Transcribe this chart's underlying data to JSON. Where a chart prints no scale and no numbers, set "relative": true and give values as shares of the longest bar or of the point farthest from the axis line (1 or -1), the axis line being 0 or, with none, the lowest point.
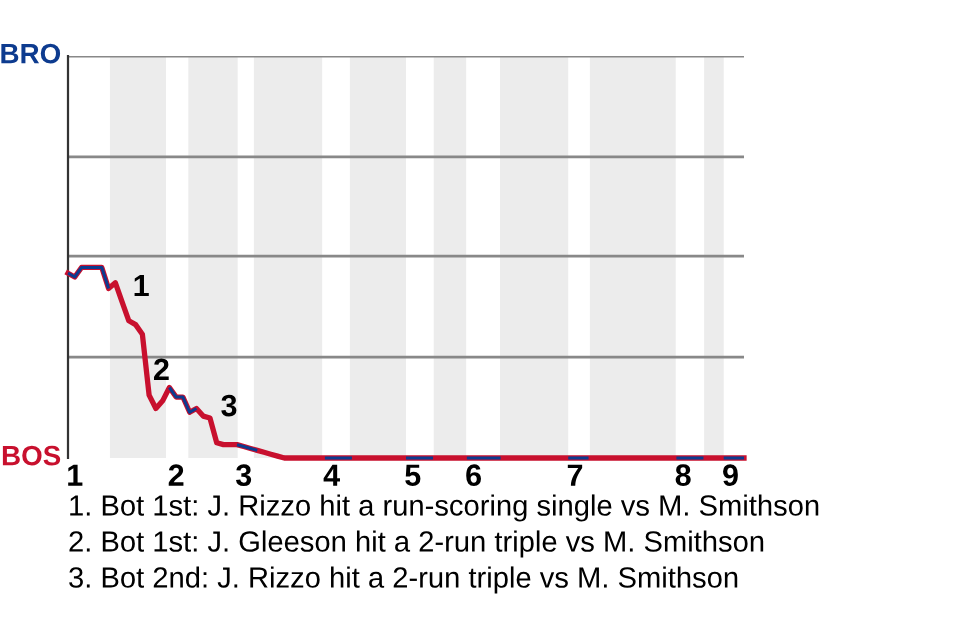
{
  "chart_data": {
    "type": "line",
    "relative": true,
    "categories": [
      null,
      "1",
      null,
      null,
      null,
      null,
      null,
      null,
      null,
      null,
      null,
      null,
      null,
      null,
      null,
      null,
      "2",
      null,
      null,
      null,
      null,
      null,
      null,
      null,
      null,
      null,
      "3",
      null,
      null,
      null,
      null,
      null,
      null,
      null,
      null,
      null,
      null,
      null,
      null,
      "4",
      null,
      null,
      null,
      null,
      null,
      null,
      null,
      null,
      null,
      null,
      null,
      "5",
      null,
      null,
      null,
      null,
      null,
      null,
      null,
      null,
      "6",
      null,
      null,
      null,
      null,
      null,
      null,
      null,
      null,
      null,
      null,
      null,
      null,
      null,
      null,
      "7",
      null,
      null,
      null,
      null,
      null,
      null,
      null,
      null,
      null,
      null,
      null,
      null,
      null,
      null,
      null,
      "8",
      null,
      null,
      null,
      null,
      null,
      null,
      "9",
      null,
      null
    ],
    "ref_lines": [
      {
        "axis": "y",
        "value": 0.53,
        "color": "#888888"
      },
      {
        "axis": "y",
        "value": 1.06,
        "color": "#888888"
      },
      {
        "axis": "y",
        "value": 1.58,
        "color": "#888888"
      },
      {
        "axis": "y",
        "value": 2.11,
        "color": "#888888"
      }
    ],
    "legend": false,
    "marker": "none",
    "line_style": "solid",
    "series": [
      {
        "color": "#c8102e",
        "values": [
          0.97,
          0.95,
          1.0,
          1.0,
          1.0,
          1.0,
          0.89,
          0.92,
          0.82,
          0.72,
          0.7,
          0.65,
          0.33,
          0.26,
          0.3,
          0.37,
          0.32,
          0.32,
          0.24,
          0.26,
          0.22,
          0.21,
          0.08,
          0.07,
          0.07,
          0.07,
          0.06,
          0.05,
          0.04,
          0.03,
          0.02,
          0.01,
          0,
          0,
          0,
          0,
          0,
          0,
          0,
          0,
          0,
          0,
          0,
          0,
          0,
          0,
          0,
          0,
          0,
          0,
          0,
          0,
          0,
          0,
          0,
          0,
          0,
          0,
          0,
          0,
          0,
          0,
          0,
          0,
          0,
          0,
          0,
          0,
          0,
          0,
          0,
          0,
          0,
          0,
          0,
          0,
          0,
          0,
          0,
          0,
          0,
          0,
          0,
          0,
          0,
          0,
          0,
          0,
          0,
          0,
          0,
          0,
          0,
          0,
          0,
          0,
          0,
          0,
          0,
          0,
          0
        ],
        "colors": [
          "#0d3b8f",
          "#0d3b8f",
          "#0d3b8f",
          "#0d3b8f",
          "#0d3b8f",
          "#0d3b8f",
          "#c8102e",
          "#c8102e",
          "#c8102e",
          "#c8102e",
          "#c8102e",
          "#c8102e",
          "#c8102e",
          "#c8102e",
          "#c8102e",
          "#0d3b8f",
          "#0d3b8f",
          "#0d3b8f",
          "#0d3b8f",
          "#c8102e",
          "#c8102e",
          "#c8102e",
          "#c8102e",
          "#c8102e",
          "#c8102e",
          "#0d3b8f",
          "#0d3b8f",
          "#0d3b8f",
          "#c8102e",
          "#c8102e",
          "#c8102e",
          "#c8102e",
          "#c8102e",
          "#c8102e",
          "#c8102e",
          "#c8102e",
          "#c8102e",
          "#c8102e",
          "#0d3b8f",
          "#0d3b8f",
          "#0d3b8f",
          "#0d3b8f",
          "#c8102e",
          "#c8102e",
          "#c8102e",
          "#c8102e",
          "#c8102e",
          "#c8102e",
          "#c8102e",
          "#c8102e",
          "#0d3b8f",
          "#0d3b8f",
          "#0d3b8f",
          "#0d3b8f",
          "#c8102e",
          "#c8102e",
          "#c8102e",
          "#c8102e",
          "#c8102e",
          "#0d3b8f",
          "#0d3b8f",
          "#0d3b8f",
          "#0d3b8f",
          "#0d3b8f",
          "#c8102e",
          "#c8102e",
          "#c8102e",
          "#c8102e",
          "#c8102e",
          "#c8102e",
          "#c8102e",
          "#c8102e",
          "#c8102e",
          "#c8102e",
          "#0d3b8f",
          "#0d3b8f",
          "#0d3b8f",
          "#c8102e",
          "#c8102e",
          "#c8102e",
          "#c8102e",
          "#c8102e",
          "#c8102e",
          "#c8102e",
          "#c8102e",
          "#c8102e",
          "#c8102e",
          "#c8102e",
          "#c8102e",
          "#c8102e",
          "#0d3b8f",
          "#0d3b8f",
          "#0d3b8f",
          "#0d3b8f",
          "#c8102e",
          "#c8102e",
          "#c8102e",
          "#0d3b8f",
          "#0d3b8f",
          "#0d3b8f",
          "#0d3b8f"
        ]
      }
    ],
    "annotations": [
      "BRO",
      "BOS",
      {
        "text": "1",
        "y": 0.7
      },
      {
        "text": "2",
        "y": 0.26
      },
      {
        "text": "3",
        "y": 0.07
      },
      "1. Bot 1st: J. Rizzo hit a run-scoring single vs M. Smithson",
      "2. Bot 1st: J. Gleeson hit a 2-run triple vs M. Smithson",
      "3. Bot 2nd: J. Rizzo hit a 2-run triple vs M. Smithson"
    ]
  }
}
